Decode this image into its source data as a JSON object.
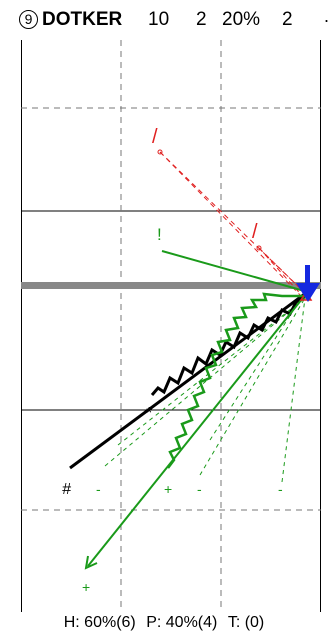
{
  "header": {
    "number": "9",
    "name": "DOTKER",
    "stat1": "10",
    "stat2": "2",
    "stat3": "20%",
    "stat4": "2"
  },
  "markers": {
    "slash1": "/",
    "slash2": "/",
    "bang": "!",
    "hash": "#",
    "star": "*",
    "plus": "+",
    "minus": "-"
  },
  "footer": {
    "h": "H: 60%(6)",
    "p": "P: 40%(4)",
    "t": "T: (0)"
  },
  "colors": {
    "red": "#e02020",
    "green": "#1a9a1a",
    "blue": "#1428e0",
    "black": "#000000",
    "gray": "#888888"
  }
}
